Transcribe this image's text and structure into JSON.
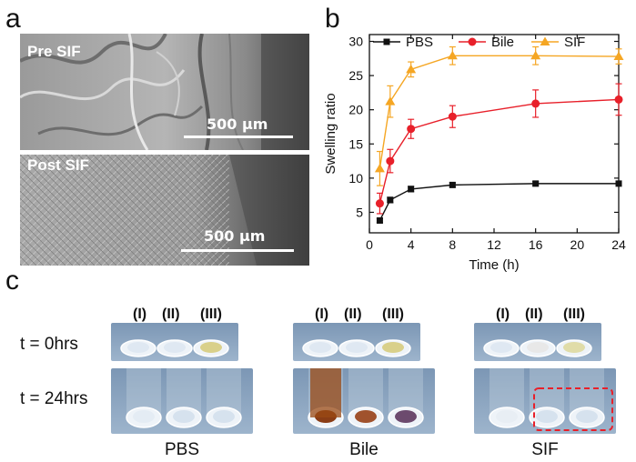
{
  "panels": {
    "a": "a",
    "b": "b",
    "c": "c"
  },
  "sem": {
    "top_label": "Pre SIF",
    "bottom_label": "Post SIF",
    "top_scale": "500 μm",
    "bottom_scale": "500 μm"
  },
  "chart_data": {
    "type": "line",
    "xlabel": "Time (h)",
    "ylabel": "Swelling ratio",
    "xlim": [
      0,
      24
    ],
    "ylim": [
      2,
      31
    ],
    "x_ticks": [
      "0",
      "4",
      "8",
      "12",
      "16",
      "20",
      "24"
    ],
    "y_ticks": [
      "5",
      "10",
      "15",
      "20",
      "25",
      "30"
    ],
    "legend_position": "top",
    "x": [
      1,
      2,
      4,
      8,
      16,
      24
    ],
    "series": [
      {
        "name": "PBS",
        "color": "#111111",
        "marker": "square",
        "values": [
          3.8,
          6.8,
          8.4,
          9.0,
          9.2,
          9.2
        ],
        "errors": [
          0.3,
          0.4,
          0.4,
          0.3,
          0.3,
          0.3
        ]
      },
      {
        "name": "Bile",
        "color": "#e8202a",
        "marker": "circle",
        "values": [
          6.3,
          12.5,
          17.2,
          19.0,
          20.9,
          21.5
        ],
        "errors": [
          1.5,
          1.7,
          1.4,
          1.6,
          2.0,
          2.3
        ]
      },
      {
        "name": "SIF",
        "color": "#f5a623",
        "marker": "triangle",
        "values": [
          11.4,
          21.2,
          25.9,
          27.9,
          27.9,
          27.8
        ],
        "errors": [
          2.5,
          2.3,
          1.1,
          1.3,
          1.3,
          1.1
        ]
      }
    ]
  },
  "photos": {
    "roman": [
      "(I)",
      "(II)",
      "(III)"
    ],
    "rows": [
      "t = 0hrs",
      "t = 24hrs"
    ],
    "conditions": [
      "PBS",
      "Bile",
      "SIF"
    ]
  }
}
